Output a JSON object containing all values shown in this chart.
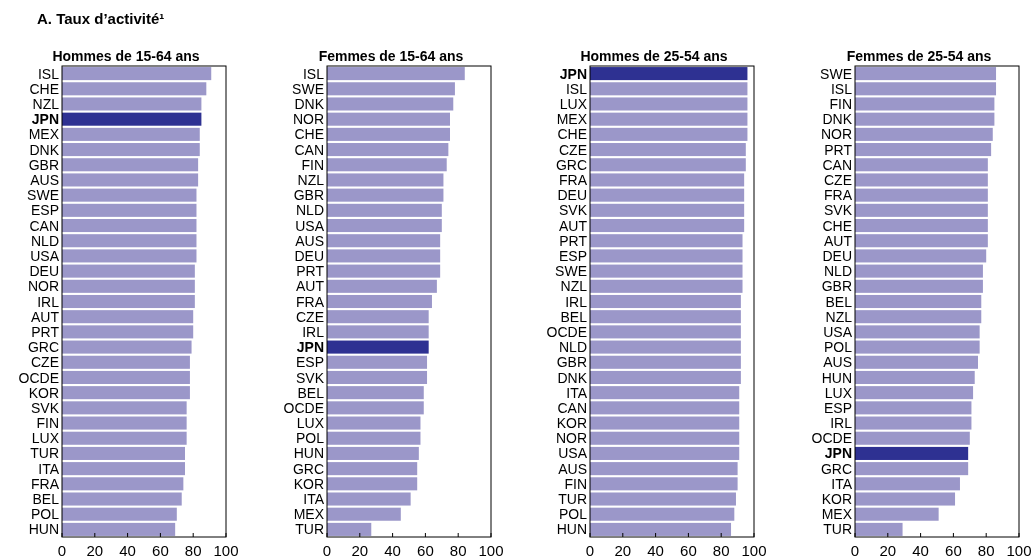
{
  "chart_data": [
    {
      "type": "bar",
      "orientation": "horizontal",
      "title": "Hommes de 15-64 ans",
      "annotations": [
        "A. Taux d’activité¹"
      ],
      "categories": [
        "ISL",
        "CHE",
        "NZL",
        "JPN",
        "MEX",
        "DNK",
        "GBR",
        "AUS",
        "SWE",
        "ESP",
        "CAN",
        "NLD",
        "USA",
        "DEU",
        "NOR",
        "IRL",
        "AUT",
        "PRT",
        "GRC",
        "CZE",
        "OCDE",
        "KOR",
        "SVK",
        "FIN",
        "LUX",
        "TUR",
        "ITA",
        "FRA",
        "BEL",
        "POL",
        "HUN"
      ],
      "values": [
        91,
        88,
        85,
        85,
        84,
        84,
        83,
        83,
        82,
        82,
        82,
        82,
        82,
        81,
        81,
        81,
        80,
        80,
        79,
        78,
        78,
        78,
        76,
        76,
        76,
        75,
        75,
        74,
        73,
        70,
        69
      ],
      "color": "#9b97c9",
      "colors": [
        "#9b97c9",
        "#9b97c9",
        "#9b97c9",
        "#2e3192",
        "#9b97c9",
        "#9b97c9",
        "#9b97c9",
        "#9b97c9",
        "#9b97c9",
        "#9b97c9",
        "#9b97c9",
        "#9b97c9",
        "#9b97c9",
        "#9b97c9",
        "#9b97c9",
        "#9b97c9",
        "#9b97c9",
        "#9b97c9",
        "#9b97c9",
        "#9b97c9",
        "#9b97c9",
        "#9b97c9",
        "#9b97c9",
        "#9b97c9",
        "#9b97c9",
        "#9b97c9",
        "#9b97c9",
        "#9b97c9",
        "#9b97c9",
        "#9b97c9",
        "#9b97c9"
      ],
      "xlim": [
        0,
        100
      ],
      "xticks": [
        0,
        20,
        40,
        60,
        80,
        100
      ]
    },
    {
      "type": "bar",
      "orientation": "horizontal",
      "title": "Femmes de 15-64 ans",
      "categories": [
        "ISL",
        "SWE",
        "DNK",
        "NOR",
        "CHE",
        "CAN",
        "FIN",
        "NZL",
        "GBR",
        "NLD",
        "USA",
        "AUS",
        "DEU",
        "PRT",
        "AUT",
        "FRA",
        "CZE",
        "IRL",
        "JPN",
        "ESP",
        "SVK",
        "BEL",
        "OCDE",
        "LUX",
        "POL",
        "HUN",
        "GRC",
        "KOR",
        "ITA",
        "MEX",
        "TUR"
      ],
      "values": [
        84,
        78,
        77,
        75,
        75,
        74,
        73,
        71,
        71,
        70,
        70,
        69,
        69,
        69,
        67,
        64,
        62,
        62,
        62,
        61,
        61,
        59,
        59,
        57,
        57,
        56,
        55,
        55,
        51,
        45,
        27
      ],
      "color": "#9b97c9",
      "colors": [
        "#9b97c9",
        "#9b97c9",
        "#9b97c9",
        "#9b97c9",
        "#9b97c9",
        "#9b97c9",
        "#9b97c9",
        "#9b97c9",
        "#9b97c9",
        "#9b97c9",
        "#9b97c9",
        "#9b97c9",
        "#9b97c9",
        "#9b97c9",
        "#9b97c9",
        "#9b97c9",
        "#9b97c9",
        "#9b97c9",
        "#2e3192",
        "#9b97c9",
        "#9b97c9",
        "#9b97c9",
        "#9b97c9",
        "#9b97c9",
        "#9b97c9",
        "#9b97c9",
        "#9b97c9",
        "#9b97c9",
        "#9b97c9",
        "#9b97c9",
        "#9b97c9"
      ],
      "xlim": [
        0,
        100
      ],
      "xticks": [
        0,
        20,
        40,
        60,
        80,
        100
      ]
    },
    {
      "type": "bar",
      "orientation": "horizontal",
      "title": "Hommes de 25-54 ans",
      "categories": [
        "JPN",
        "ISL",
        "LUX",
        "MEX",
        "CHE",
        "CZE",
        "GRC",
        "FRA",
        "DEU",
        "SVK",
        "AUT",
        "PRT",
        "ESP",
        "SWE",
        "NZL",
        "IRL",
        "BEL",
        "OCDE",
        "NLD",
        "GBR",
        "DNK",
        "ITA",
        "CAN",
        "KOR",
        "NOR",
        "USA",
        "AUS",
        "FIN",
        "TUR",
        "POL",
        "HUN"
      ],
      "values": [
        96,
        96,
        96,
        96,
        96,
        95,
        95,
        94,
        94,
        94,
        94,
        93,
        93,
        93,
        93,
        92,
        92,
        92,
        92,
        92,
        92,
        91,
        91,
        91,
        91,
        91,
        90,
        90,
        89,
        88,
        86
      ],
      "color": "#9b97c9",
      "colors": [
        "#2e3192",
        "#9b97c9",
        "#9b97c9",
        "#9b97c9",
        "#9b97c9",
        "#9b97c9",
        "#9b97c9",
        "#9b97c9",
        "#9b97c9",
        "#9b97c9",
        "#9b97c9",
        "#9b97c9",
        "#9b97c9",
        "#9b97c9",
        "#9b97c9",
        "#9b97c9",
        "#9b97c9",
        "#9b97c9",
        "#9b97c9",
        "#9b97c9",
        "#9b97c9",
        "#9b97c9",
        "#9b97c9",
        "#9b97c9",
        "#9b97c9",
        "#9b97c9",
        "#9b97c9",
        "#9b97c9",
        "#9b97c9",
        "#9b97c9",
        "#9b97c9"
      ],
      "xlim": [
        0,
        100
      ],
      "xticks": [
        0,
        20,
        40,
        60,
        80,
        100
      ]
    },
    {
      "type": "bar",
      "orientation": "horizontal",
      "title": "Femmes de 25-54 ans",
      "categories": [
        "SWE",
        "ISL",
        "FIN",
        "DNK",
        "NOR",
        "PRT",
        "CAN",
        "CZE",
        "FRA",
        "SVK",
        "CHE",
        "AUT",
        "DEU",
        "NLD",
        "GBR",
        "BEL",
        "NZL",
        "USA",
        "POL",
        "AUS",
        "HUN",
        "LUX",
        "ESP",
        "IRL",
        "OCDE",
        "JPN",
        "GRC",
        "ITA",
        "KOR",
        "MEX",
        "TUR"
      ],
      "values": [
        86,
        86,
        85,
        85,
        84,
        83,
        81,
        81,
        81,
        81,
        81,
        81,
        80,
        78,
        78,
        77,
        77,
        76,
        76,
        75,
        73,
        72,
        71,
        71,
        70,
        69,
        69,
        64,
        61,
        51,
        29
      ],
      "color": "#9b97c9",
      "colors": [
        "#9b97c9",
        "#9b97c9",
        "#9b97c9",
        "#9b97c9",
        "#9b97c9",
        "#9b97c9",
        "#9b97c9",
        "#9b97c9",
        "#9b97c9",
        "#9b97c9",
        "#9b97c9",
        "#9b97c9",
        "#9b97c9",
        "#9b97c9",
        "#9b97c9",
        "#9b97c9",
        "#9b97c9",
        "#9b97c9",
        "#9b97c9",
        "#9b97c9",
        "#9b97c9",
        "#9b97c9",
        "#9b97c9",
        "#9b97c9",
        "#9b97c9",
        "#2e3192",
        "#9b97c9",
        "#9b97c9",
        "#9b97c9",
        "#9b97c9",
        "#9b97c9"
      ],
      "xlim": [
        0,
        100
      ],
      "xticks": [
        0,
        20,
        40,
        60,
        80,
        100
      ]
    }
  ]
}
